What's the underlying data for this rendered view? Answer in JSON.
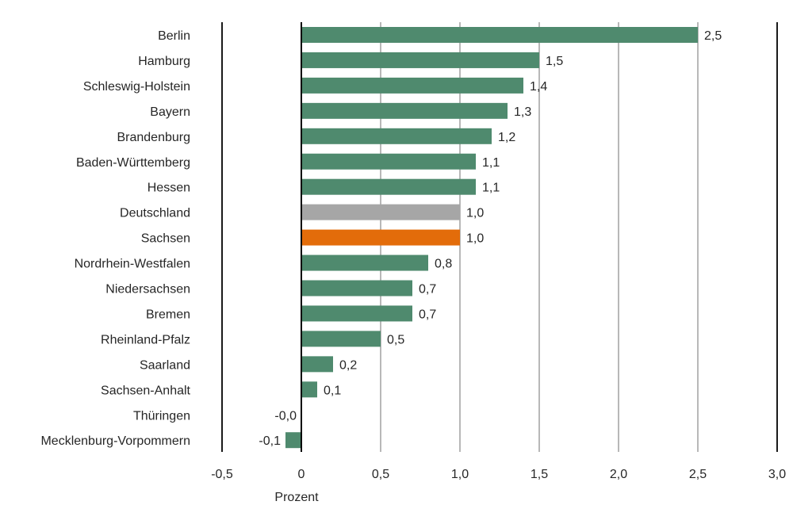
{
  "chart_data": {
    "type": "bar",
    "orientation": "horizontal",
    "xlabel": "Prozent",
    "xlim": [
      -0.5,
      3.0
    ],
    "xticks": [
      "-0,5",
      "0",
      "0,5",
      "1,0",
      "1,5",
      "2,0",
      "2,5",
      "3,0"
    ],
    "xtick_values": [
      -0.5,
      0,
      0.5,
      1.0,
      1.5,
      2.0,
      2.5,
      3.0
    ],
    "grid": "vertical",
    "categories": [
      "Berlin",
      "Hamburg",
      "Schleswig-Holstein",
      "Bayern",
      "Brandenburg",
      "Baden-Württemberg",
      "Hessen",
      "Deutschland",
      "Sachsen",
      "Nordrhein-Westfalen",
      "Niedersachsen",
      "Bremen",
      "Rheinland-Pfalz",
      "Saarland",
      "Sachsen-Anhalt",
      "Thüringen",
      "Mecklenburg-Vorpommern"
    ],
    "values": [
      2.5,
      1.5,
      1.4,
      1.3,
      1.2,
      1.1,
      1.1,
      1.0,
      1.0,
      0.8,
      0.7,
      0.7,
      0.5,
      0.2,
      0.1,
      -0.0,
      -0.1
    ],
    "data_labels": [
      "2,5",
      "1,5",
      "1,4",
      "1,3",
      "1,2",
      "1,1",
      "1,1",
      "1,0",
      "1,0",
      "0,8",
      "0,7",
      "0,7",
      "0,5",
      "0,2",
      "0,1",
      "-0,0",
      "-0,1"
    ],
    "colors": {
      "default": "#4f8a6e",
      "Deutschland": "#a6a6a6",
      "Sachsen": "#e36c0a"
    }
  }
}
